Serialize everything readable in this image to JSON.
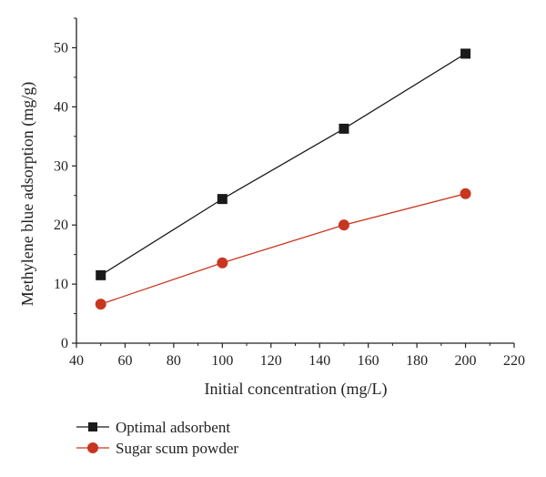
{
  "chart_data": {
    "type": "line",
    "title": "",
    "xlabel": "Initial concentration (mg/L)",
    "ylabel": "Methylene blue adsorption (mg/g)",
    "xlim": [
      40,
      220
    ],
    "ylim": [
      0,
      55
    ],
    "xticks": [
      40,
      60,
      80,
      100,
      120,
      140,
      160,
      180,
      200,
      220
    ],
    "yticks": [
      0,
      10,
      20,
      30,
      40,
      50
    ],
    "grid": false,
    "legend_position": "bottom-left, below plot",
    "x": [
      50,
      100,
      150,
      200
    ],
    "series": [
      {
        "name": "Optimal adsorbent",
        "values": [
          11.5,
          24.4,
          36.3,
          49.0
        ],
        "color": "#1a1a1a",
        "marker": "square"
      },
      {
        "name": "Sugar scum powder",
        "values": [
          6.6,
          13.6,
          20.0,
          25.3
        ],
        "color": "#c8361f",
        "marker": "circle"
      }
    ]
  }
}
